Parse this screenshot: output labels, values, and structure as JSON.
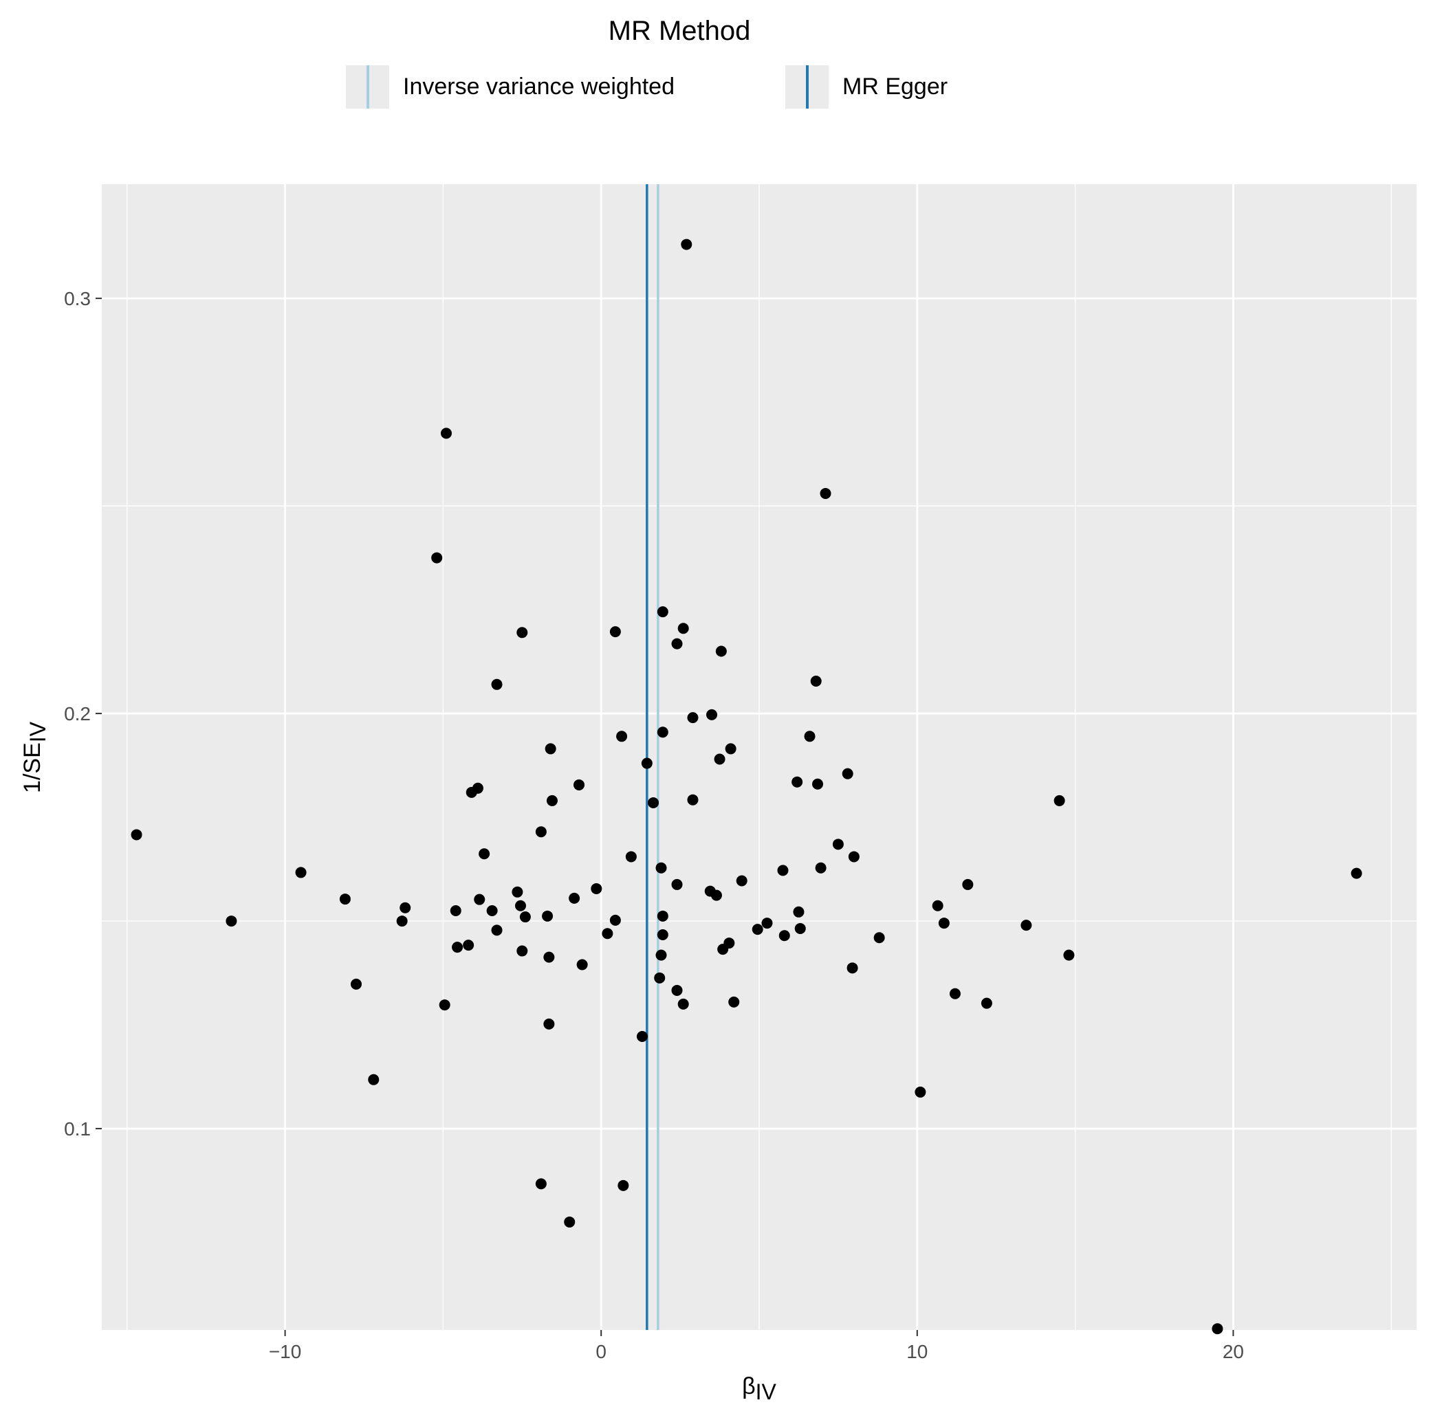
{
  "chart_data": {
    "type": "scatter",
    "title": "",
    "xlabel": "βIV",
    "xlabel_parts": {
      "main": "β",
      "sub": "IV"
    },
    "ylabel": "1/SEIV",
    "ylabel_parts": {
      "main": "1/SE",
      "sub": "IV"
    },
    "xlim": [
      -15.8,
      25.8
    ],
    "ylim": [
      0.0515,
      0.3275
    ],
    "x_ticks": [
      -10,
      0,
      10,
      20
    ],
    "x_tick_labels": [
      "−10",
      "0",
      "10",
      "20"
    ],
    "y_ticks": [
      0.1,
      0.2,
      0.3
    ],
    "y_tick_labels": [
      "0.1",
      "0.2",
      "0.3"
    ],
    "grid": true,
    "panel_background": "#ebebeb",
    "point_color": "#000000",
    "legend": {
      "title": "MR Method",
      "position": "top",
      "entries": [
        {
          "label": "Inverse variance weighted",
          "color": "#a6cee3"
        },
        {
          "label": "MR Egger",
          "color": "#1f78b4"
        }
      ]
    },
    "lines": [
      {
        "name": "Inverse variance weighted",
        "type": "vline",
        "x": 1.8,
        "color": "#a6cee3"
      },
      {
        "name": "MR Egger",
        "type": "vline",
        "x": 1.45,
        "color": "#1f78b4"
      }
    ],
    "points": [
      {
        "x": 2.7,
        "y": 0.313
      },
      {
        "x": -4.9,
        "y": 0.2675
      },
      {
        "x": 7.1,
        "y": 0.253
      },
      {
        "x": -5.2,
        "y": 0.2375
      },
      {
        "x": 1.95,
        "y": 0.2245
      },
      {
        "x": 2.6,
        "y": 0.2205
      },
      {
        "x": -2.5,
        "y": 0.2195
      },
      {
        "x": 0.45,
        "y": 0.2197
      },
      {
        "x": 2.4,
        "y": 0.2168
      },
      {
        "x": 3.8,
        "y": 0.215
      },
      {
        "x": -3.3,
        "y": 0.207
      },
      {
        "x": 6.8,
        "y": 0.2078
      },
      {
        "x": 3.5,
        "y": 0.1997
      },
      {
        "x": 2.9,
        "y": 0.199
      },
      {
        "x": 1.95,
        "y": 0.1955
      },
      {
        "x": 0.65,
        "y": 0.1945
      },
      {
        "x": 6.6,
        "y": 0.1945
      },
      {
        "x": -1.6,
        "y": 0.1915
      },
      {
        "x": 4.1,
        "y": 0.1915
      },
      {
        "x": 3.75,
        "y": 0.189
      },
      {
        "x": 1.45,
        "y": 0.188
      },
      {
        "x": 7.8,
        "y": 0.1855
      },
      {
        "x": 6.2,
        "y": 0.1835
      },
      {
        "x": 6.85,
        "y": 0.183
      },
      {
        "x": -0.7,
        "y": 0.1828
      },
      {
        "x": -3.9,
        "y": 0.182
      },
      {
        "x": -4.1,
        "y": 0.181
      },
      {
        "x": -1.55,
        "y": 0.179
      },
      {
        "x": 2.9,
        "y": 0.1792
      },
      {
        "x": 1.65,
        "y": 0.1785
      },
      {
        "x": 14.5,
        "y": 0.179
      },
      {
        "x": -14.7,
        "y": 0.1708
      },
      {
        "x": -1.9,
        "y": 0.1715
      },
      {
        "x": 7.5,
        "y": 0.1685
      },
      {
        "x": -3.7,
        "y": 0.1662
      },
      {
        "x": 0.95,
        "y": 0.1655
      },
      {
        "x": 8.0,
        "y": 0.1655
      },
      {
        "x": 1.9,
        "y": 0.1628
      },
      {
        "x": 6.95,
        "y": 0.1628
      },
      {
        "x": 5.75,
        "y": 0.1622
      },
      {
        "x": -9.5,
        "y": 0.1617
      },
      {
        "x": 23.9,
        "y": 0.1615
      },
      {
        "x": 4.45,
        "y": 0.1597
      },
      {
        "x": 2.4,
        "y": 0.1588
      },
      {
        "x": 11.6,
        "y": 0.1588
      },
      {
        "x": -0.15,
        "y": 0.1578
      },
      {
        "x": 3.45,
        "y": 0.1572
      },
      {
        "x": -2.65,
        "y": 0.157
      },
      {
        "x": 3.65,
        "y": 0.1562
      },
      {
        "x": -0.85,
        "y": 0.1555
      },
      {
        "x": -3.85,
        "y": 0.1552
      },
      {
        "x": -8.1,
        "y": 0.1553
      },
      {
        "x": 10.65,
        "y": 0.1537
      },
      {
        "x": -2.55,
        "y": 0.1537
      },
      {
        "x": -6.2,
        "y": 0.1532
      },
      {
        "x": -4.6,
        "y": 0.1525
      },
      {
        "x": -3.45,
        "y": 0.1525
      },
      {
        "x": 6.25,
        "y": 0.1522
      },
      {
        "x": -1.7,
        "y": 0.1512
      },
      {
        "x": 1.95,
        "y": 0.1512
      },
      {
        "x": -2.4,
        "y": 0.151
      },
      {
        "x": -11.7,
        "y": 0.15
      },
      {
        "x": -6.3,
        "y": 0.15
      },
      {
        "x": 0.45,
        "y": 0.1502
      },
      {
        "x": 5.25,
        "y": 0.1495
      },
      {
        "x": 10.85,
        "y": 0.1495
      },
      {
        "x": 13.45,
        "y": 0.149
      },
      {
        "x": 6.3,
        "y": 0.1482
      },
      {
        "x": -3.3,
        "y": 0.1478
      },
      {
        "x": 4.95,
        "y": 0.148
      },
      {
        "x": 0.2,
        "y": 0.147
      },
      {
        "x": 1.95,
        "y": 0.1467
      },
      {
        "x": 5.8,
        "y": 0.1465
      },
      {
        "x": 8.8,
        "y": 0.146
      },
      {
        "x": 4.05,
        "y": 0.1447
      },
      {
        "x": -4.2,
        "y": 0.1442
      },
      {
        "x": -4.55,
        "y": 0.1437
      },
      {
        "x": 3.85,
        "y": 0.1432
      },
      {
        "x": -2.5,
        "y": 0.1428
      },
      {
        "x": 1.9,
        "y": 0.1418
      },
      {
        "x": 14.8,
        "y": 0.1418
      },
      {
        "x": -1.65,
        "y": 0.1413
      },
      {
        "x": -0.6,
        "y": 0.1395
      },
      {
        "x": 7.95,
        "y": 0.1387
      },
      {
        "x": 1.85,
        "y": 0.1363
      },
      {
        "x": -7.75,
        "y": 0.1348
      },
      {
        "x": 2.4,
        "y": 0.1333
      },
      {
        "x": 11.2,
        "y": 0.1325
      },
      {
        "x": 4.2,
        "y": 0.1305
      },
      {
        "x": 2.6,
        "y": 0.13
      },
      {
        "x": -4.95,
        "y": 0.1298
      },
      {
        "x": 12.2,
        "y": 0.1302
      },
      {
        "x": -1.65,
        "y": 0.1252
      },
      {
        "x": 1.3,
        "y": 0.1222
      },
      {
        "x": -7.2,
        "y": 0.1118
      },
      {
        "x": 10.1,
        "y": 0.1088
      },
      {
        "x": -1.9,
        "y": 0.0867
      },
      {
        "x": 0.7,
        "y": 0.0863
      },
      {
        "x": -1.0,
        "y": 0.0775
      },
      {
        "x": 19.5,
        "y": 0.0518
      }
    ]
  }
}
